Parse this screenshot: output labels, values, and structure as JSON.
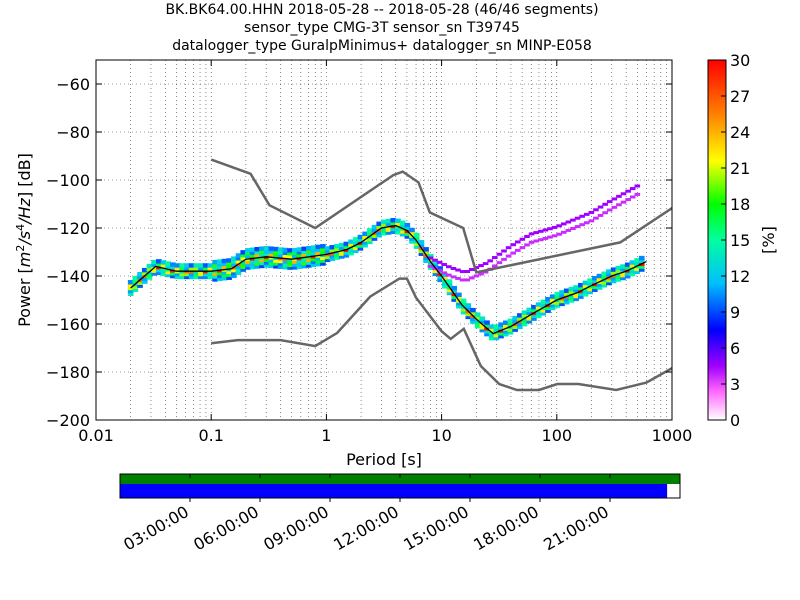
{
  "title": {
    "line1": "BK.BK64.00.HHN   2018-05-28 -- 2018-05-28  (46/46 segments)",
    "line2": "sensor_type CMG-3T sensor_sn T39745",
    "line3": "datalogger_type GuralpMinimus+ datalogger_sn MINP-E058"
  },
  "chart_data": {
    "type": "heatmap",
    "xlabel": "Period [s]",
    "x_scale": "log",
    "xlim": [
      0.01,
      1000
    ],
    "x_ticks": [
      "0.01",
      "0.1",
      "1",
      "10",
      "100",
      "1000"
    ],
    "ylabel": "Power [m²/s⁴/Hz] [dB]",
    "ylabel_parts": {
      "prefix": "Power [",
      "unit": "m",
      "unit_sup1": "2",
      "slash1": "/s",
      "unit_sup2": "4",
      "slash2": "/Hz",
      "suffix": "] [dB]"
    },
    "ylim": [
      -200,
      -50
    ],
    "y_ticks": [
      "−200",
      "−180",
      "−160",
      "−140",
      "−120",
      "−100",
      "−80",
      "−60"
    ],
    "grid": true,
    "colorbar": {
      "label": "[%]",
      "range": [
        0,
        30
      ],
      "ticks": [
        "0",
        "3",
        "6",
        "9",
        "12",
        "15",
        "18",
        "21",
        "24",
        "27",
        "30"
      ],
      "colormap": [
        "#ffffff",
        "#ff00ff",
        "#8b00ff",
        "#0000ff",
        "#00bfff",
        "#00ffaa",
        "#00ff00",
        "#ffff00",
        "#ff8000",
        "#ff0000"
      ]
    },
    "new_high_noise_model": [
      {
        "x": 0.1,
        "y": -91.5
      },
      {
        "x": 0.22,
        "y": -97.4
      },
      {
        "x": 0.32,
        "y": -110.5
      },
      {
        "x": 0.8,
        "y": -120
      },
      {
        "x": 3.8,
        "y": -98
      },
      {
        "x": 4.6,
        "y": -96.5
      },
      {
        "x": 6.3,
        "y": -101
      },
      {
        "x": 7.9,
        "y": -113.5
      },
      {
        "x": 15.4,
        "y": -120
      },
      {
        "x": 20,
        "y": -138.5
      },
      {
        "x": 354.8,
        "y": -126
      },
      {
        "x": 10000,
        "y": -80
      }
    ],
    "new_low_noise_model": [
      {
        "x": 0.1,
        "y": -168
      },
      {
        "x": 0.17,
        "y": -166.7
      },
      {
        "x": 0.4,
        "y": -166.7
      },
      {
        "x": 0.8,
        "y": -169.2
      },
      {
        "x": 1.24,
        "y": -163.7
      },
      {
        "x": 2.4,
        "y": -148.6
      },
      {
        "x": 4.3,
        "y": -141.1
      },
      {
        "x": 5.0,
        "y": -141.1
      },
      {
        "x": 6.0,
        "y": -149
      },
      {
        "x": 10.0,
        "y": -163
      },
      {
        "x": 12.0,
        "y": -166.2
      },
      {
        "x": 15.6,
        "y": -162
      },
      {
        "x": 21.9,
        "y": -177.5
      },
      {
        "x": 31.6,
        "y": -185
      },
      {
        "x": 45,
        "y": -187.5
      },
      {
        "x": 70,
        "y": -187.5
      },
      {
        "x": 101,
        "y": -185
      },
      {
        "x": 154,
        "y": -185
      },
      {
        "x": 328,
        "y": -187.5
      },
      {
        "x": 600,
        "y": -184.4
      },
      {
        "x": 10000,
        "y": -151.5
      }
    ],
    "mean_psd": [
      {
        "x": 0.02,
        "y": -145
      },
      {
        "x": 0.025,
        "y": -141
      },
      {
        "x": 0.033,
        "y": -136
      },
      {
        "x": 0.05,
        "y": -138
      },
      {
        "x": 0.1,
        "y": -138
      },
      {
        "x": 0.15,
        "y": -137
      },
      {
        "x": 0.2,
        "y": -133
      },
      {
        "x": 0.3,
        "y": -132
      },
      {
        "x": 0.5,
        "y": -133
      },
      {
        "x": 1,
        "y": -131
      },
      {
        "x": 1.5,
        "y": -129
      },
      {
        "x": 2,
        "y": -126
      },
      {
        "x": 3,
        "y": -120
      },
      {
        "x": 4,
        "y": -119
      },
      {
        "x": 5,
        "y": -121
      },
      {
        "x": 6,
        "y": -125
      },
      {
        "x": 8,
        "y": -134
      },
      {
        "x": 10,
        "y": -140
      },
      {
        "x": 15,
        "y": -152
      },
      {
        "x": 20,
        "y": -158
      },
      {
        "x": 28,
        "y": -164
      },
      {
        "x": 40,
        "y": -161
      },
      {
        "x": 60,
        "y": -156
      },
      {
        "x": 100,
        "y": -150
      },
      {
        "x": 150,
        "y": -147
      },
      {
        "x": 200,
        "y": -144
      },
      {
        "x": 300,
        "y": -140
      },
      {
        "x": 400,
        "y": -138
      },
      {
        "x": 600,
        "y": -134
      }
    ],
    "outlier_band": [
      {
        "x": 8,
        "y": -136
      },
      {
        "x": 12,
        "y": -140
      },
      {
        "x": 16,
        "y": -142
      },
      {
        "x": 25,
        "y": -138
      },
      {
        "x": 40,
        "y": -131
      },
      {
        "x": 60,
        "y": -126
      },
      {
        "x": 100,
        "y": -123
      },
      {
        "x": 200,
        "y": -117
      },
      {
        "x": 300,
        "y": -112
      },
      {
        "x": 500,
        "y": -106
      }
    ]
  },
  "timeline": {
    "tick_labels": [
      "03:00:00",
      "06:00:00",
      "09:00:00",
      "12:00:00",
      "15:00:00",
      "18:00:00",
      "21:00:00"
    ],
    "tick_hours": [
      3,
      6,
      9,
      12,
      15,
      18,
      21
    ],
    "range_hours": [
      0,
      24
    ],
    "coverage_fraction": 0.977,
    "colors": {
      "data": "#008000",
      "psd": "#0000ff"
    }
  }
}
